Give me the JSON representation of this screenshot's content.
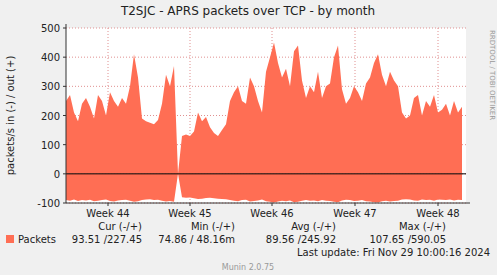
{
  "chart_data": {
    "type": "area",
    "title": "T2SJC - APRS packets over TCP - by month",
    "y_label": "packets/s in (-) / out (+)",
    "side_label": "RRDTOOL / TOBI OETIKER",
    "footer": "Munin 2.0.75",
    "last_update": "Last update: Fri Nov 29 10:00:16 2024",
    "xlim": [
      0,
      100
    ],
    "ylim": [
      -100,
      500
    ],
    "yticks": [
      -100,
      0,
      100,
      200,
      300,
      400,
      500
    ],
    "xticks": [
      {
        "value": 10.5,
        "label": "Week 44"
      },
      {
        "value": 31,
        "label": "Week 45"
      },
      {
        "value": 51.5,
        "label": "Week 46"
      },
      {
        "value": 72.25,
        "label": "Week 47"
      },
      {
        "value": 93,
        "label": "Week 48"
      }
    ],
    "grid": true,
    "x": [
      0,
      1,
      2,
      3,
      4,
      5,
      6,
      7,
      8,
      9,
      10,
      11,
      12,
      13,
      14,
      15,
      16,
      17,
      18,
      19,
      20,
      21,
      22,
      23,
      24,
      25,
      26,
      27,
      28,
      29,
      30,
      31,
      32,
      33,
      34,
      35,
      36,
      37,
      38,
      39,
      40,
      41,
      42,
      43,
      44,
      45,
      46,
      47,
      48,
      49,
      50,
      51,
      52,
      53,
      54,
      55,
      56,
      57,
      58,
      59,
      60,
      61,
      62,
      63,
      64,
      65,
      66,
      67,
      68,
      69,
      70,
      71,
      72,
      73,
      74,
      75,
      76,
      77,
      78,
      79,
      80,
      81,
      82,
      83,
      84,
      85,
      86,
      87,
      88,
      89,
      90,
      91,
      92,
      93,
      94,
      95,
      96,
      97,
      98,
      99
    ],
    "series": [
      {
        "name": "Packets",
        "color": "#ff6e54",
        "values": [
          250,
          270,
          210,
          180,
          240,
          260,
          230,
          190,
          270,
          250,
          200,
          280,
          250,
          230,
          260,
          240,
          300,
          410,
          330,
          190,
          180,
          175,
          170,
          185,
          240,
          340,
          300,
          370,
          0,
          130,
          135,
          130,
          145,
          210,
          180,
          195,
          160,
          140,
          130,
          150,
          170,
          250,
          280,
          300,
          250,
          240,
          330,
          300,
          250,
          210,
          350,
          400,
          450,
          380,
          330,
          360,
          300,
          420,
          440,
          320,
          260,
          300,
          280,
          350,
          260,
          300,
          310,
          400,
          440,
          290,
          240,
          260,
          300,
          280,
          250,
          310,
          330,
          380,
          410,
          340,
          300,
          350,
          320,
          300,
          210,
          190,
          200,
          260,
          270,
          200,
          250,
          230,
          270,
          210,
          220,
          240,
          200,
          250,
          210,
          230
        ],
        "in_values": [
          -90,
          -92,
          -88,
          -93,
          -90,
          -91,
          -89,
          -94,
          -92,
          -90,
          -88,
          -93,
          -95,
          -91,
          -90,
          -89,
          -92,
          -96,
          -94,
          -90,
          -88,
          -87,
          -90,
          -89,
          -92,
          -95,
          -93,
          -96,
          0,
          -80,
          -82,
          -81,
          -84,
          -86,
          -85,
          -83,
          -82,
          -84,
          -85,
          -86,
          -87,
          -90,
          -92,
          -94,
          -90,
          -89,
          -95,
          -93,
          -91,
          -88,
          -94,
          -96,
          -98,
          -95,
          -92,
          -94,
          -91,
          -97,
          -96,
          -92,
          -90,
          -92,
          -91,
          -94,
          -90,
          -92,
          -93,
          -96,
          -97,
          -91,
          -89,
          -90,
          -93,
          -92,
          -90,
          -94,
          -95,
          -97,
          -98,
          -94,
          -92,
          -95,
          -93,
          -92,
          -88,
          -87,
          -88,
          -91,
          -92,
          -88,
          -90,
          -89,
          -92,
          -88,
          -89,
          -90,
          -88,
          -91,
          -89,
          -90
        ]
      }
    ],
    "legend_table": {
      "headers": [
        "Cur (-/+)",
        "Min (-/+)",
        "Avg (-/+)",
        "Max (-/+)"
      ],
      "values": [
        "93.51 /227.45",
        "74.86 / 48.16m",
        "89.56 /245.92",
        "107.65 /590.05"
      ]
    }
  }
}
